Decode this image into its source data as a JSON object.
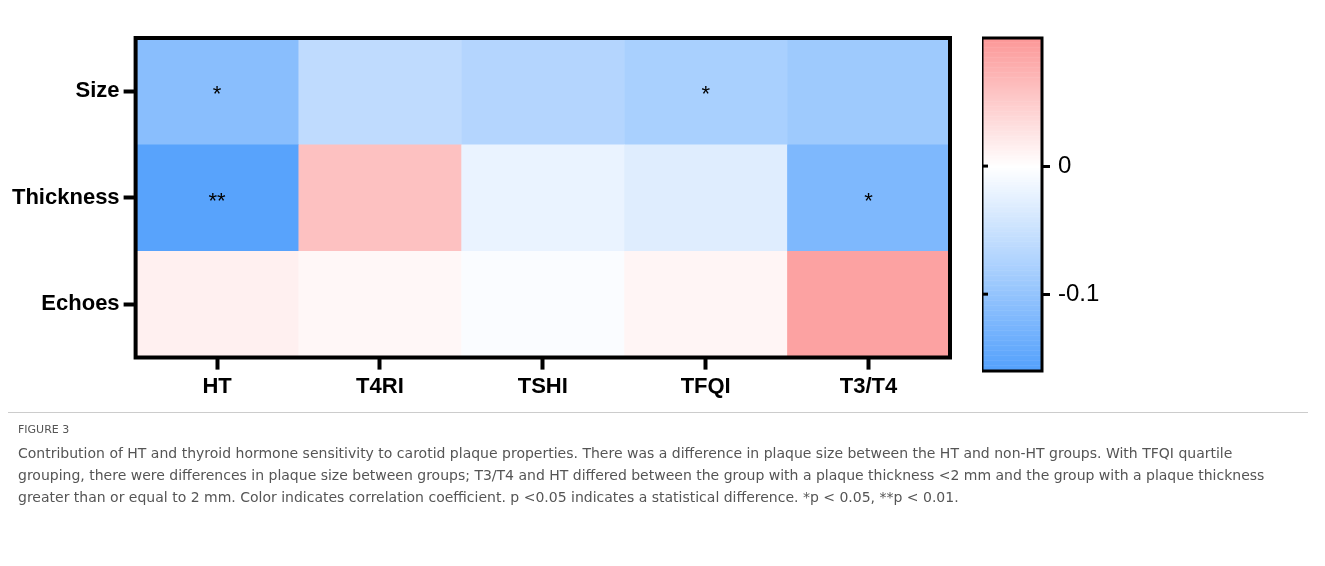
{
  "chart_data": {
    "type": "heatmap",
    "categories": [
      "HT",
      "T4RI",
      "TSHI",
      "TFQI",
      "T3/T4"
    ],
    "y_categories": [
      "Size",
      "Thickness",
      "Echoes"
    ],
    "cells": [
      [
        -0.11,
        -0.06,
        -0.07,
        -0.08,
        -0.09
      ],
      [
        -0.155,
        0.06,
        -0.02,
        -0.03,
        -0.12
      ],
      [
        0.015,
        0.008,
        -0.005,
        0.01,
        0.09
      ]
    ],
    "cell_labels": [
      [
        "*",
        null,
        null,
        "*",
        null
      ],
      [
        "**",
        null,
        null,
        null,
        "*"
      ],
      [
        null,
        null,
        null,
        null,
        null
      ]
    ],
    "clim": [
      -0.16,
      0.1
    ],
    "cticks": [
      0,
      -0.1
    ],
    "annotations": [
      "FIGURE 3",
      "Contribution of HT and thyroid hormone sensitivity to carotid plaque properties. There was a difference in plaque size between the HT and non-HT groups. With TFQI quartile grouping, there were differences in plaque size between groups; T3/T4 and HT differed between the group with a plaque thickness <2 mm and the group with a plaque thickness greater than or equal to 2 mm. Color indicates correlation coefficient. p <0.05 indicates a statistical difference. *p < 0.05, **p < 0.01."
    ]
  }
}
